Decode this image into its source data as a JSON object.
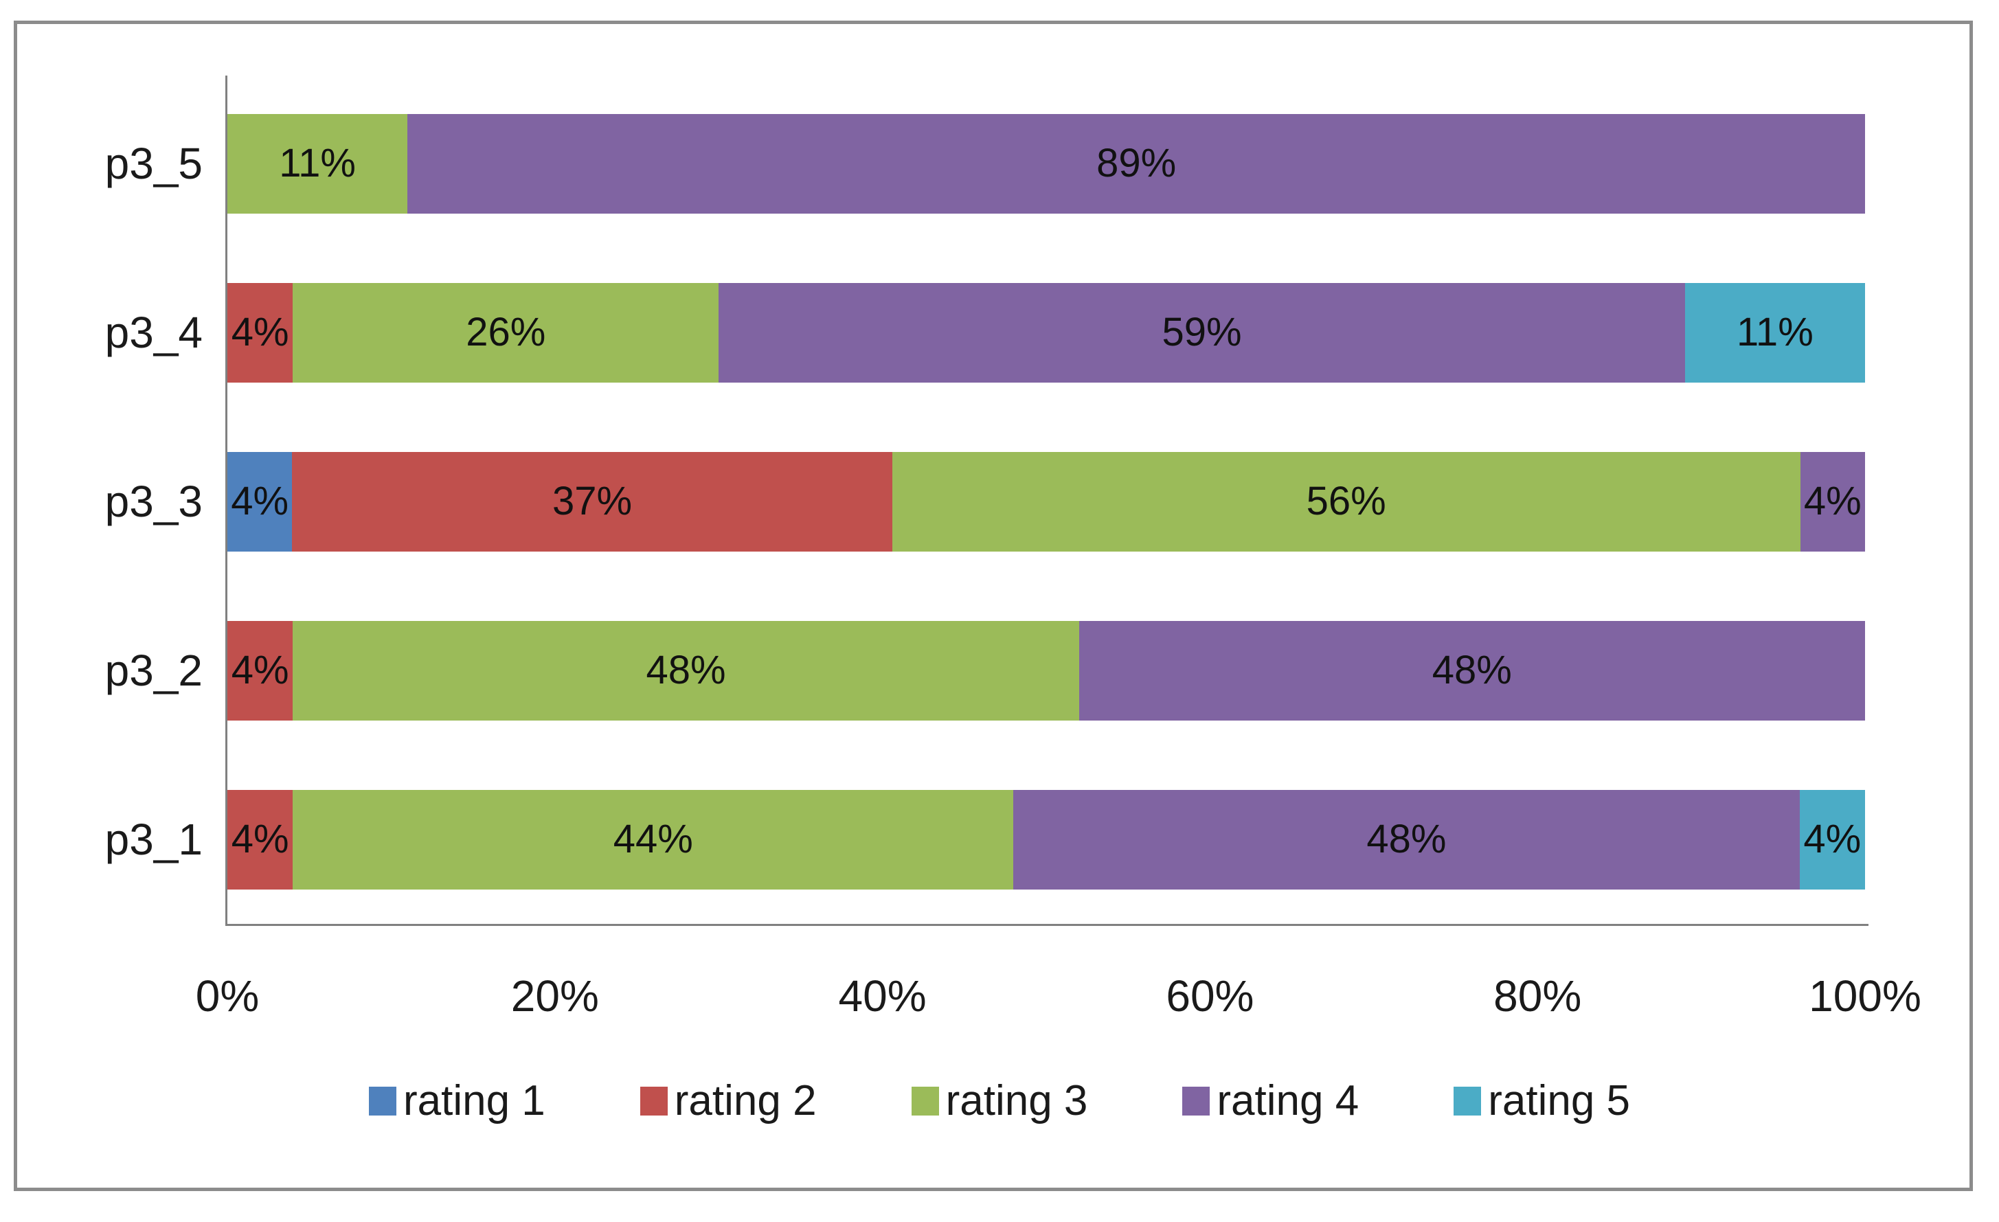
{
  "chart_data": {
    "type": "bar",
    "subtype": "stacked-horizontal-100pct",
    "title": "",
    "xlabel": "",
    "ylabel": "",
    "xlim": [
      0,
      100
    ],
    "grid": false,
    "legend_position": "bottom",
    "categories": [
      "p3_1",
      "p3_2",
      "p3_3",
      "p3_4",
      "p3_5"
    ],
    "series": [
      {
        "name": "rating 1",
        "color": "#4F81BD",
        "values": [
          0,
          0,
          4,
          0,
          0
        ]
      },
      {
        "name": "rating 2",
        "color": "#C0504D",
        "values": [
          4,
          4,
          37,
          4,
          0
        ]
      },
      {
        "name": "rating 3",
        "color": "#9BBB59",
        "values": [
          44,
          48,
          56,
          26,
          11
        ]
      },
      {
        "name": "rating 4",
        "color": "#8064A2",
        "values": [
          48,
          48,
          4,
          59,
          89
        ]
      },
      {
        "name": "rating 5",
        "color": "#4BACC6",
        "values": [
          4,
          0,
          0,
          11,
          0
        ]
      }
    ],
    "rows_top_to_bottom": [
      {
        "category": "p3_5",
        "segments": [
          {
            "series": "rating 3",
            "value": 11,
            "label": "11%"
          },
          {
            "series": "rating 4",
            "value": 89,
            "label": "89%"
          }
        ]
      },
      {
        "category": "p3_4",
        "segments": [
          {
            "series": "rating 2",
            "value": 4,
            "label": "4%"
          },
          {
            "series": "rating 3",
            "value": 26,
            "label": "26%"
          },
          {
            "series": "rating 4",
            "value": 59,
            "label": "59%"
          },
          {
            "series": "rating 5",
            "value": 11,
            "label": "11%"
          }
        ]
      },
      {
        "category": "p3_3",
        "segments": [
          {
            "series": "rating 1",
            "value": 4,
            "label": "4%"
          },
          {
            "series": "rating 2",
            "value": 37,
            "label": "37%"
          },
          {
            "series": "rating 3",
            "value": 56,
            "label": "56%"
          },
          {
            "series": "rating 4",
            "value": 4,
            "label": "4%"
          }
        ]
      },
      {
        "category": "p3_2",
        "segments": [
          {
            "series": "rating 2",
            "value": 4,
            "label": "4%"
          },
          {
            "series": "rating 3",
            "value": 48,
            "label": "48%"
          },
          {
            "series": "rating 4",
            "value": 48,
            "label": "48%"
          }
        ]
      },
      {
        "category": "p3_1",
        "segments": [
          {
            "series": "rating 2",
            "value": 4,
            "label": "4%"
          },
          {
            "series": "rating 3",
            "value": 44,
            "label": "44%"
          },
          {
            "series": "rating 4",
            "value": 48,
            "label": "48%"
          },
          {
            "series": "rating 5",
            "value": 4,
            "label": "4%"
          }
        ]
      }
    ],
    "x_ticks": [
      {
        "label": "0%",
        "value": 0
      },
      {
        "label": "20%",
        "value": 20
      },
      {
        "label": "40%",
        "value": 40
      },
      {
        "label": "60%",
        "value": 60
      },
      {
        "label": "80%",
        "value": 80
      },
      {
        "label": "100%",
        "value": 100
      }
    ],
    "legend": [
      {
        "label": "rating 1",
        "color": "#4F81BD"
      },
      {
        "label": "rating 2",
        "color": "#C0504D"
      },
      {
        "label": "rating 3",
        "color": "#9BBB59"
      },
      {
        "label": "rating 4",
        "color": "#8064A2"
      },
      {
        "label": "rating 5",
        "color": "#4BACC6"
      }
    ]
  },
  "colors": {
    "background": "#FFFFFF",
    "frame_border": "#8C8C8C",
    "axis": "#808080",
    "label_text": "#111111"
  }
}
